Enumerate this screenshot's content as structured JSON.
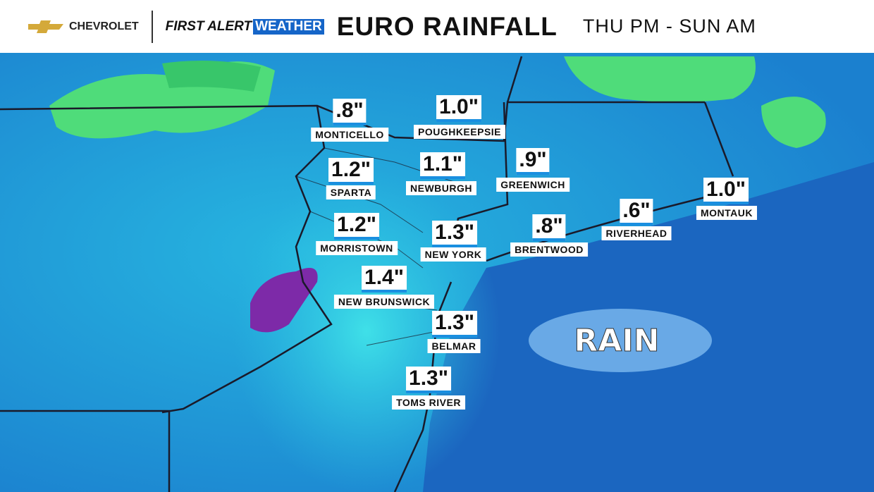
{
  "header": {
    "brand": "CHEVROLET",
    "segment_first": "FIRST ALERT",
    "segment_second": "WEATHER",
    "title": "EURO RAINFALL",
    "timeframe": "THU PM - SUN AM"
  },
  "locations": [
    {
      "amount": ".8\"",
      "name": "MONTICELLO"
    },
    {
      "amount": "1.0\"",
      "name": "POUGHKEEPSIE"
    },
    {
      "amount": "1.2\"",
      "name": "SPARTA"
    },
    {
      "amount": "1.1\"",
      "name": "NEWBURGH"
    },
    {
      "amount": ".9\"",
      "name": "GREENWICH"
    },
    {
      "amount": "1.0\"",
      "name": "MONTAUK"
    },
    {
      "amount": ".6\"",
      "name": "RIVERHEAD"
    },
    {
      "amount": ".8\"",
      "name": "BRENTWOOD"
    },
    {
      "amount": "1.2\"",
      "name": "MORRISTOWN"
    },
    {
      "amount": "1.3\"",
      "name": "NEW YORK"
    },
    {
      "amount": "1.4\"",
      "name": "NEW BRUNSWICK"
    },
    {
      "amount": "1.3\"",
      "name": "BELMAR"
    },
    {
      "amount": "1.3\"",
      "name": "TOMS RIVER"
    }
  ],
  "precip_label": "RAIN"
}
